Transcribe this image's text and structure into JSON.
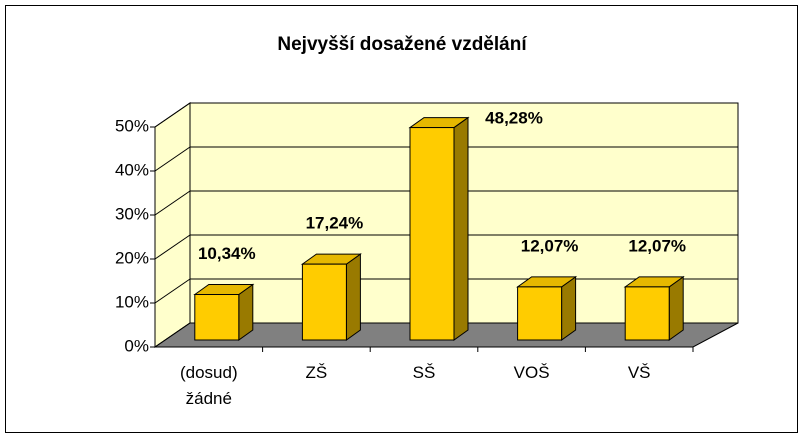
{
  "chart_data": {
    "type": "bar",
    "title": "Nejvyšší dosažené vzdělání",
    "categories": [
      "(dosud) žádné",
      "ZŠ",
      "SŠ",
      "VOŠ",
      "VŠ"
    ],
    "values": [
      10.34,
      17.24,
      48.28,
      12.07,
      12.07
    ],
    "value_labels": [
      "10,34%",
      "17,24%",
      "48,28%",
      "12,07%",
      "12,07%"
    ],
    "color": "#ffcc00",
    "ylim": [
      0,
      50
    ],
    "yticks": [
      {
        "value": 0,
        "label": "0%"
      },
      {
        "value": 10,
        "label": "10%"
      },
      {
        "value": 20,
        "label": "20%"
      },
      {
        "value": 30,
        "label": "30%"
      },
      {
        "value": 40,
        "label": "40%"
      },
      {
        "value": 50,
        "label": "50%"
      }
    ],
    "grid": true
  }
}
